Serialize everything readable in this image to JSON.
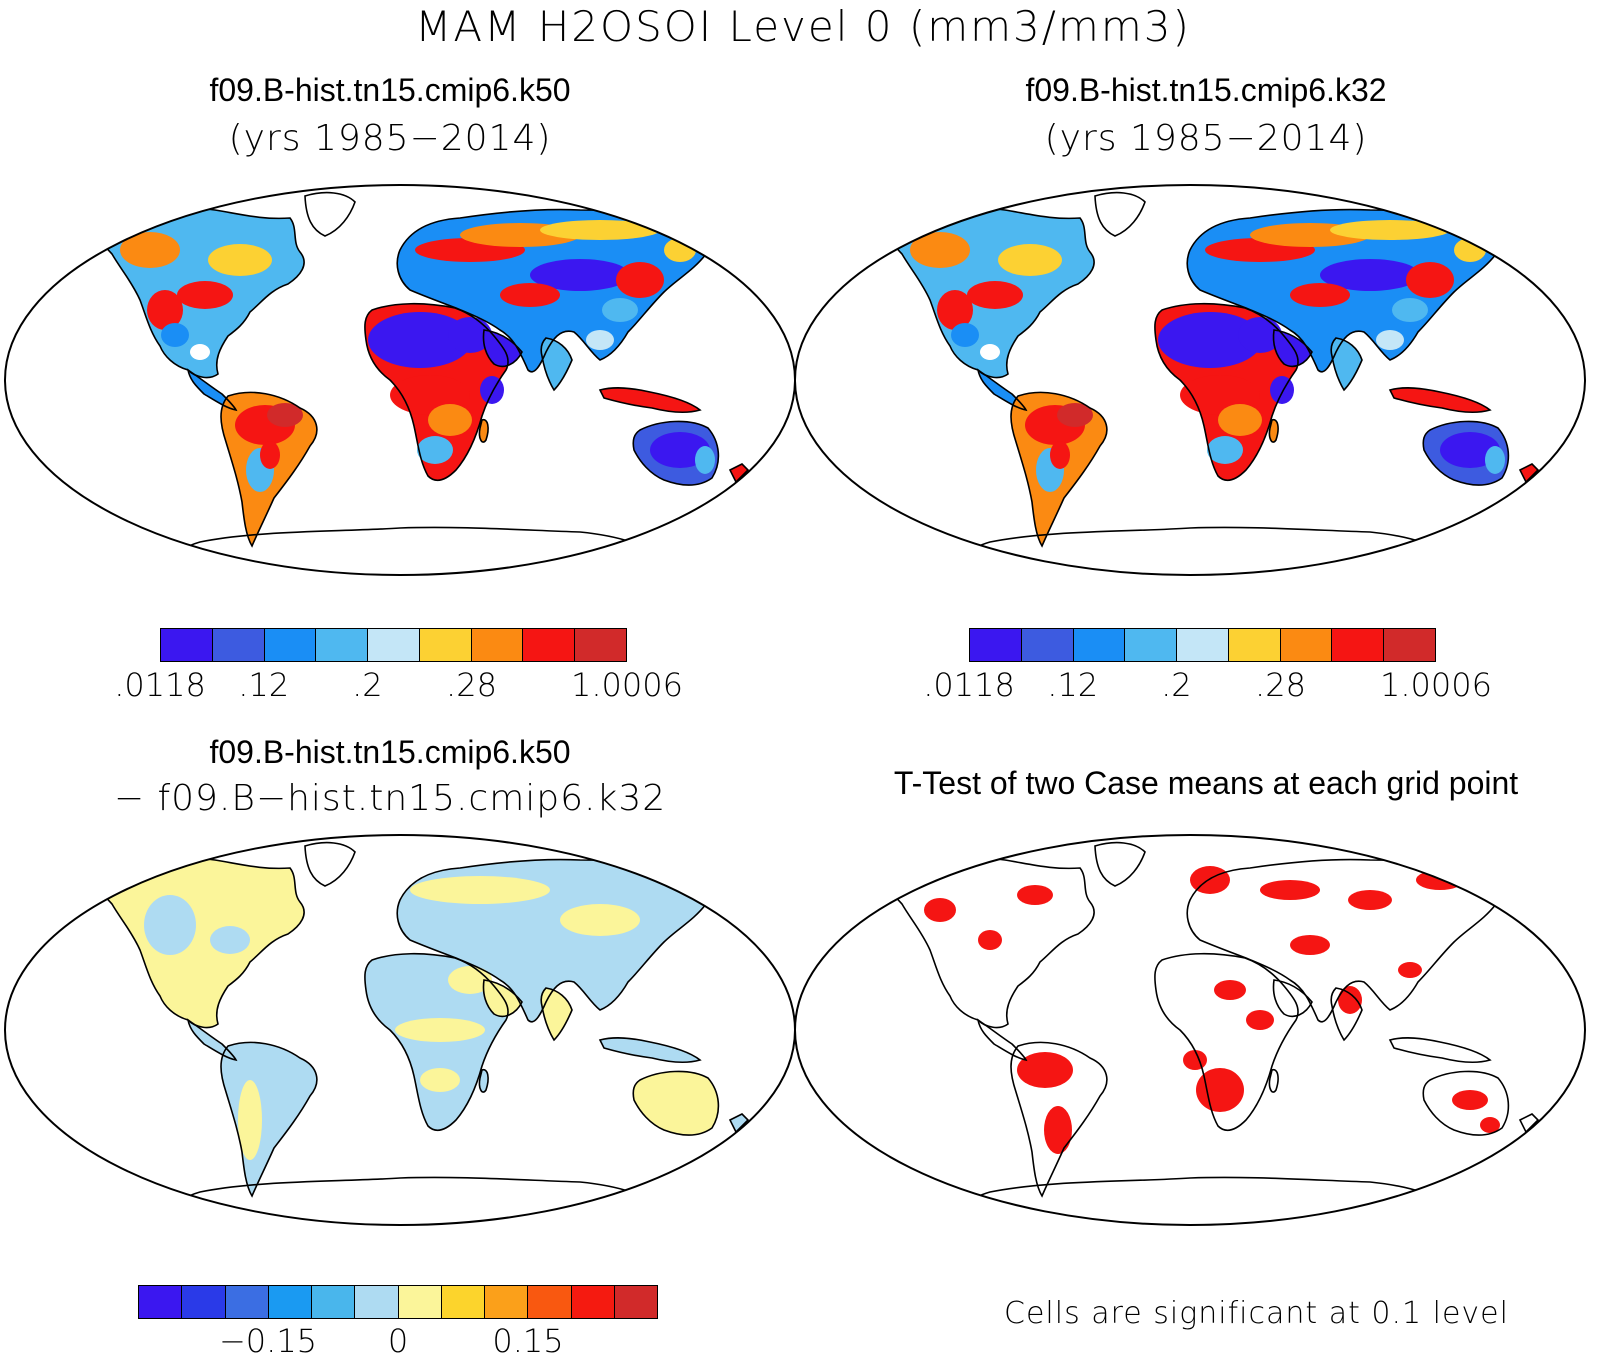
{
  "figure": {
    "title": "MAM H2OSOI Level 0 (mm3/mm3)"
  },
  "panels": {
    "top_left": {
      "case": "f09.B-hist.tn15.cmip6.k50",
      "years": "(yrs 1985−2014)"
    },
    "top_right": {
      "case": "f09.B-hist.tn15.cmip6.k32",
      "years": "(yrs 1985−2014)"
    },
    "bottom_left": {
      "line1": "f09.B-hist.tn15.cmip6.k50",
      "line2": "− f09.B−hist.tn15.cmip6.k32"
    },
    "bottom_right": {
      "title": "T-Test of two Case means at each grid point",
      "note": "Cells are significant at 0.1 level"
    }
  },
  "colorbars": {
    "mean": {
      "colors": [
        "#3b17f0",
        "#3d5be0",
        "#1a8ef5",
        "#4fb8f0",
        "#c4e6f7",
        "#fcd133",
        "#fb8a12",
        "#f51513",
        "#d12a2a"
      ],
      "labels": [
        ".0118",
        ".12",
        ".2",
        ".28",
        "1.0006"
      ]
    },
    "diff": {
      "colors": [
        "#3b17f0",
        "#2a3ae8",
        "#3b6ee3",
        "#1a9af2",
        "#49b6ec",
        "#aedbf2",
        "#fbf59a",
        "#fcd42c",
        "#fba01a",
        "#f95810",
        "#f51a10",
        "#d12a2a"
      ],
      "labels": [
        "−0.15",
        "0",
        "0.15"
      ]
    }
  },
  "map_colors": {
    "desert": "#3b17f0",
    "dry": "#3d5be0",
    "mid": "#1a8ef5",
    "moist": "#fb8a12",
    "wet": "#f51513",
    "diff_neg": "#aedbf2",
    "diff_pos": "#fbf59a",
    "signif": "#f51513"
  }
}
